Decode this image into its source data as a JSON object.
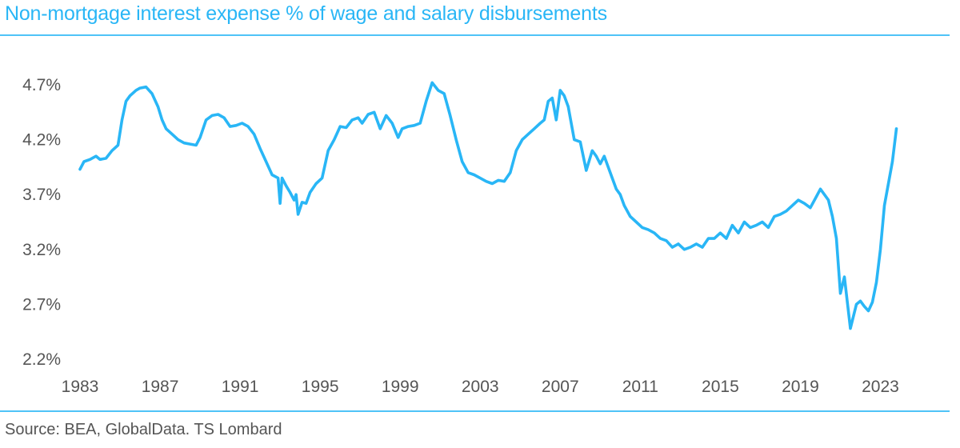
{
  "title": "Non-mortgage interest expense % of wage and salary disbursements",
  "source": "Source: BEA, GlobalData. TS Lombard",
  "colors": {
    "series": "#29b6f6",
    "rule": "#4fc3f7",
    "text": "#555555"
  },
  "chart_data": {
    "type": "line",
    "title": "Non-mortgage interest expense % of wage and salary disbursements",
    "xlabel": "",
    "ylabel": "",
    "xlim": [
      1983,
      2023.9
    ],
    "ylim": [
      2.2,
      4.7
    ],
    "grid": false,
    "legend": "none",
    "x_ticks": [
      "1983",
      "1987",
      "1991",
      "1995",
      "1999",
      "2003",
      "2007",
      "2011",
      "2015",
      "2019",
      "2023"
    ],
    "y_ticks": [
      "2.2%",
      "2.7%",
      "3.2%",
      "3.7%",
      "4.2%",
      "4.7%"
    ],
    "series": [
      {
        "x": [
          1983.0,
          1983.2,
          1983.5,
          1983.8,
          1984.0,
          1984.3,
          1984.6,
          1984.9,
          1985.1,
          1985.3,
          1985.5,
          1985.8,
          1986.0,
          1986.3,
          1986.6,
          1986.9,
          1987.1,
          1987.3,
          1987.6,
          1987.9,
          1988.2,
          1988.5,
          1988.8,
          1989.0,
          1989.3,
          1989.6,
          1989.9,
          1990.2,
          1990.5,
          1990.8,
          1991.1,
          1991.4,
          1991.7,
          1992.0,
          1992.3,
          1992.6,
          1992.9,
          1993.0,
          1993.1,
          1993.3,
          1993.5,
          1993.7,
          1993.8,
          1993.9,
          1994.1,
          1994.3,
          1994.5,
          1994.8,
          1995.1,
          1995.4,
          1995.7,
          1996.0,
          1996.3,
          1996.6,
          1996.9,
          1997.1,
          1997.4,
          1997.7,
          1998.0,
          1998.3,
          1998.6,
          1998.9,
          1999.1,
          1999.4,
          1999.7,
          2000.0,
          2000.3,
          2000.6,
          2000.9,
          2001.2,
          2001.5,
          2001.8,
          2002.1,
          2002.4,
          2002.7,
          2003.0,
          2003.3,
          2003.6,
          2003.9,
          2004.2,
          2004.5,
          2004.8,
          2005.1,
          2005.4,
          2005.7,
          2006.0,
          2006.2,
          2006.4,
          2006.6,
          2006.8,
          2007.0,
          2007.2,
          2007.4,
          2007.7,
          2008.0,
          2008.3,
          2008.6,
          2008.8,
          2009.0,
          2009.2,
          2009.5,
          2009.8,
          2010.0,
          2010.2,
          2010.5,
          2010.8,
          2011.1,
          2011.4,
          2011.7,
          2012.0,
          2012.3,
          2012.6,
          2012.9,
          2013.2,
          2013.5,
          2013.8,
          2014.1,
          2014.4,
          2014.7,
          2015.0,
          2015.3,
          2015.6,
          2015.9,
          2016.2,
          2016.5,
          2016.8,
          2017.1,
          2017.4,
          2017.7,
          2018.0,
          2018.3,
          2018.6,
          2018.9,
          2019.2,
          2019.5,
          2019.8,
          2020.0,
          2020.2,
          2020.4,
          2020.6,
          2020.8,
          2021.0,
          2021.2,
          2021.5,
          2021.8,
          2022.0,
          2022.2,
          2022.4,
          2022.6,
          2022.8,
          2023.0,
          2023.2,
          2023.4,
          2023.6,
          2023.8
        ],
        "values": [
          3.93,
          4.0,
          4.02,
          4.05,
          4.02,
          4.03,
          4.1,
          4.15,
          4.38,
          4.55,
          4.6,
          4.65,
          4.67,
          4.68,
          4.62,
          4.5,
          4.38,
          4.3,
          4.25,
          4.2,
          4.17,
          4.16,
          4.15,
          4.22,
          4.38,
          4.42,
          4.43,
          4.4,
          4.32,
          4.33,
          4.35,
          4.32,
          4.25,
          4.12,
          4.0,
          3.88,
          3.85,
          3.62,
          3.85,
          3.78,
          3.72,
          3.65,
          3.7,
          3.52,
          3.63,
          3.62,
          3.72,
          3.8,
          3.85,
          4.1,
          4.2,
          4.32,
          4.31,
          4.38,
          4.4,
          4.35,
          4.43,
          4.45,
          4.3,
          4.42,
          4.35,
          4.22,
          4.3,
          4.32,
          4.33,
          4.35,
          4.55,
          4.72,
          4.65,
          4.62,
          4.42,
          4.2,
          4.0,
          3.9,
          3.88,
          3.85,
          3.82,
          3.8,
          3.83,
          3.82,
          3.9,
          4.1,
          4.2,
          4.25,
          4.3,
          4.35,
          4.38,
          4.55,
          4.58,
          4.38,
          4.65,
          4.6,
          4.5,
          4.2,
          4.18,
          3.92,
          4.1,
          4.05,
          3.98,
          4.05,
          3.9,
          3.75,
          3.7,
          3.6,
          3.5,
          3.45,
          3.4,
          3.38,
          3.35,
          3.3,
          3.28,
          3.22,
          3.25,
          3.2,
          3.22,
          3.25,
          3.22,
          3.3,
          3.3,
          3.35,
          3.3,
          3.42,
          3.35,
          3.45,
          3.4,
          3.42,
          3.45,
          3.4,
          3.5,
          3.52,
          3.55,
          3.6,
          3.65,
          3.62,
          3.58,
          3.68,
          3.75,
          3.7,
          3.65,
          3.5,
          3.3,
          2.8,
          2.95,
          2.48,
          2.7,
          2.73,
          2.68,
          2.64,
          2.72,
          2.9,
          3.2,
          3.6,
          3.8,
          4.0,
          4.3
        ]
      }
    ]
  }
}
